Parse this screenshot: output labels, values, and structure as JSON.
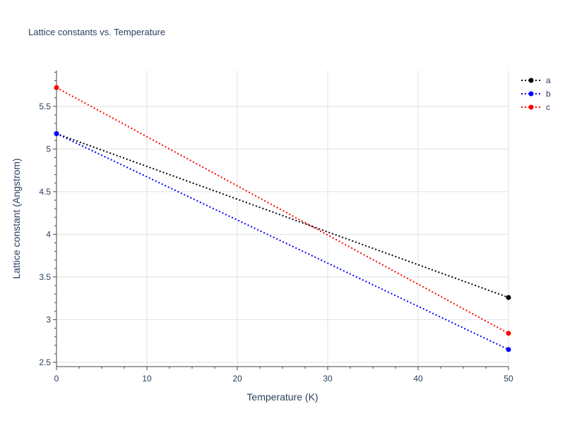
{
  "chart_data": {
    "type": "line",
    "title": "Lattice constants vs. Temperature",
    "xlabel": "Temperature (K)",
    "ylabel": "Lattice constant (Angstrom)",
    "xlim": [
      0,
      50
    ],
    "ylim": [
      2.45,
      5.92
    ],
    "xticks": [
      0,
      10,
      20,
      30,
      40,
      50
    ],
    "yticks": [
      2.5,
      3,
      3.5,
      4,
      4.5,
      5,
      5.5
    ],
    "ytick_labels": [
      "2.5",
      "3",
      "3.5",
      "4",
      "4.5",
      "5",
      "5.5"
    ],
    "grid": true,
    "legend": "top-right",
    "series": [
      {
        "name": "a",
        "color": "#000000",
        "x": [
          0,
          50
        ],
        "y": [
          5.18,
          3.26
        ]
      },
      {
        "name": "b",
        "color": "#0000ff",
        "x": [
          0,
          50
        ],
        "y": [
          5.18,
          2.65
        ]
      },
      {
        "name": "c",
        "color": "#ff0000",
        "x": [
          0,
          50
        ],
        "y": [
          5.72,
          2.84
        ]
      }
    ]
  }
}
